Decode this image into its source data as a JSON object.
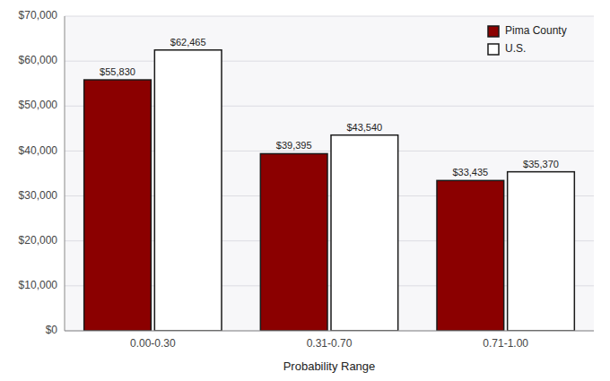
{
  "chart_data": {
    "type": "bar",
    "xlabel": "Probability Range",
    "categories": [
      "0.00-0.30",
      "0.31-0.70",
      "0.71-1.00"
    ],
    "series": [
      {
        "name": "Pima County",
        "color": "#8B0000",
        "values": [
          55830,
          39395,
          33435
        ],
        "value_labels": [
          "$55,830",
          "$39,395",
          "$33,435"
        ]
      },
      {
        "name": "U.S.",
        "color": "#FFFFFF",
        "values": [
          62465,
          43540,
          35370
        ],
        "value_labels": [
          "$62,465",
          "$43,540",
          "$35,370"
        ]
      }
    ],
    "ylim": [
      0,
      70000
    ],
    "yticks": [
      {
        "value": 0,
        "label": "$0"
      },
      {
        "value": 10000,
        "label": "$10,000"
      },
      {
        "value": 20000,
        "label": "$20,000"
      },
      {
        "value": 30000,
        "label": "$30,000"
      },
      {
        "value": 40000,
        "label": "$40,000"
      },
      {
        "value": 50000,
        "label": "$50,000"
      },
      {
        "value": 60000,
        "label": "$60,000"
      },
      {
        "value": 70000,
        "label": "$70,000"
      }
    ],
    "grid": true,
    "legend": "upper right",
    "data_labels": true
  }
}
